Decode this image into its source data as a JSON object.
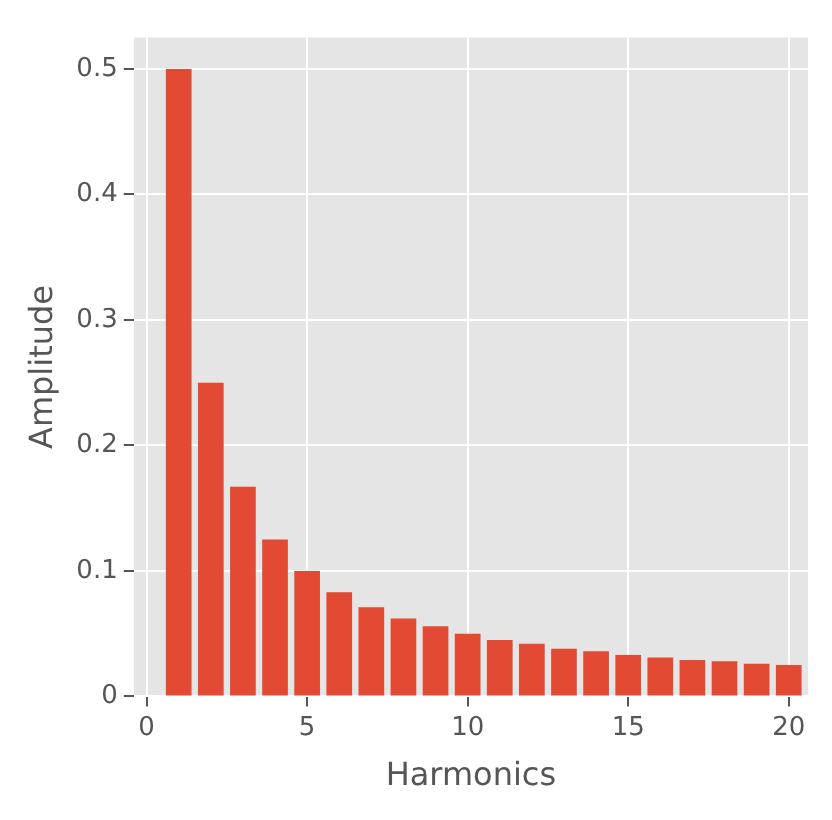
{
  "chart_data": {
    "type": "bar",
    "xlabel": "Harmonics",
    "ylabel": "Amplitude",
    "x": [
      1,
      2,
      3,
      4,
      5,
      6,
      7,
      8,
      9,
      10,
      11,
      12,
      13,
      14,
      15,
      16,
      17,
      18,
      19,
      20
    ],
    "values": [
      0.5,
      0.25,
      0.167,
      0.125,
      0.1,
      0.083,
      0.071,
      0.062,
      0.056,
      0.05,
      0.045,
      0.042,
      0.038,
      0.036,
      0.033,
      0.031,
      0.029,
      0.028,
      0.026,
      0.025
    ],
    "color": "#e24a33",
    "xlim": [
      -0.4,
      20.6
    ],
    "ylim": [
      0,
      0.525
    ],
    "xticks": [
      0,
      5,
      10,
      15,
      20
    ],
    "yticks": [
      0,
      0.1,
      0.2,
      0.3,
      0.4,
      0.5
    ],
    "grid": true
  }
}
